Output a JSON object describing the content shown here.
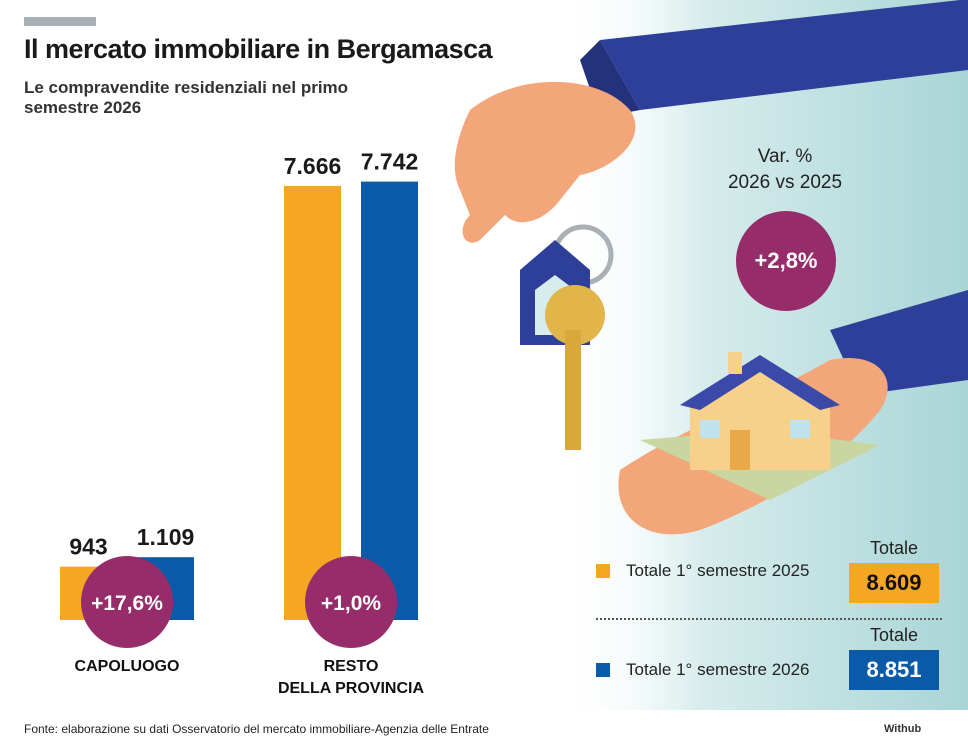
{
  "title": "Il mercato immobiliare in Bergamasca",
  "subtitle": "Le compravendite residenziali nel primo semestre 2026",
  "colors": {
    "y2025": "#f5a623",
    "y2026": "#0a5aa8",
    "circle": "#962c6a",
    "bg_panel": "#b7dcdd"
  },
  "chart_data": {
    "type": "bar",
    "title": "Le compravendite residenziali nel primo semestre 2026",
    "categories": [
      "CAPOLUOGO",
      "RESTO DELLA PROVINCIA"
    ],
    "category_lines": [
      [
        "CAPOLUOGO"
      ],
      [
        "RESTO",
        "DELLA PROVINCIA"
      ]
    ],
    "series": [
      {
        "name": "Totale 1° semestre 2025",
        "values": [
          943,
          7666
        ],
        "labels": [
          "943",
          "7.666"
        ]
      },
      {
        "name": "Totale 1° semestre 2026",
        "values": [
          1109,
          7742
        ],
        "labels": [
          "1.109",
          "7.742"
        ]
      }
    ],
    "variations": [
      "+17,6%",
      "+1,0%"
    ],
    "ylim": [
      0,
      8300
    ],
    "legend_placement": "bottom-right"
  },
  "variation": {
    "label": "Var. %\n2026 vs 2025",
    "value": "+2,8%"
  },
  "legend": [
    {
      "text": "Totale 1° semestre 2025",
      "total_label": "Totale",
      "total": "8.609"
    },
    {
      "text": "Totale 1° semestre 2026",
      "total_label": "Totale",
      "total": "8.851"
    }
  ],
  "source": "Fonte: elaborazione su dati Osservatorio del mercato immobiliare-Agenzia delle Entrate",
  "brand": "Withub",
  "icons": [
    "hand-with-keys-icon",
    "hand-with-house-icon"
  ]
}
